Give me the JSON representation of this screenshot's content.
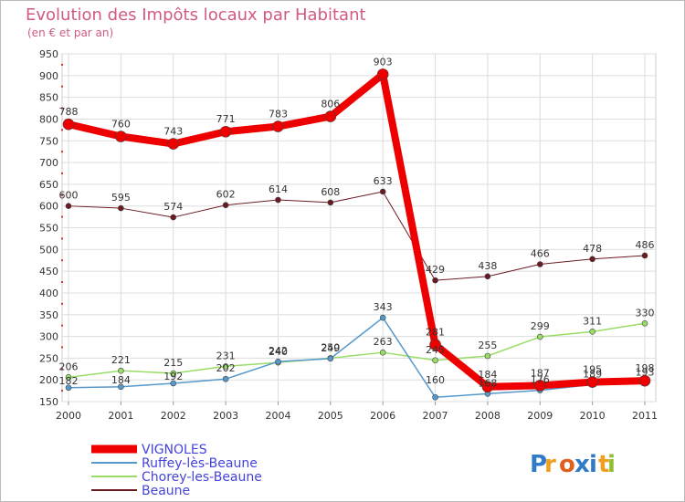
{
  "chart_data": {
    "type": "line",
    "title": "Evolution des Impôts locaux par Habitant",
    "subtitle": "(en € et par an)",
    "xlabel": "",
    "ylabel": "",
    "categories": [
      "2000",
      "2001",
      "2002",
      "2003",
      "2004",
      "2005",
      "2006",
      "2007",
      "2008",
      "2009",
      "2010",
      "2011"
    ],
    "ylim": [
      150,
      950
    ],
    "yticks": [
      150,
      200,
      250,
      300,
      350,
      400,
      450,
      500,
      550,
      600,
      650,
      700,
      750,
      800,
      850,
      900,
      950
    ],
    "grid": true,
    "legend_position": "bottom-left",
    "series": [
      {
        "name": "Beaune",
        "color": "#6b1a22",
        "values": [
          600,
          595,
          574,
          602,
          614,
          608,
          633,
          429,
          438,
          466,
          478,
          486
        ]
      },
      {
        "name": "Chorey-les-Beaune",
        "color": "#99dd66",
        "values": [
          206,
          221,
          215,
          231,
          240,
          250,
          263,
          245,
          255,
          299,
          311,
          330
        ]
      },
      {
        "name": "Ruffey-lès-Beaune",
        "color": "#5599cc",
        "values": [
          182,
          184,
          192,
          202,
          242,
          249,
          343,
          160,
          168,
          176,
          189,
          193
        ]
      },
      {
        "name": "VIGNOLES",
        "color": "#ee0000",
        "values": [
          788,
          760,
          743,
          771,
          783,
          806,
          903,
          281,
          184,
          187,
          195,
          198
        ]
      }
    ]
  },
  "legend_order": [
    "VIGNOLES",
    "Ruffey-lès-Beaune",
    "Chorey-les-Beaune",
    "Beaune"
  ],
  "legend_color": "#4444dd",
  "watermark": "Proxiti"
}
